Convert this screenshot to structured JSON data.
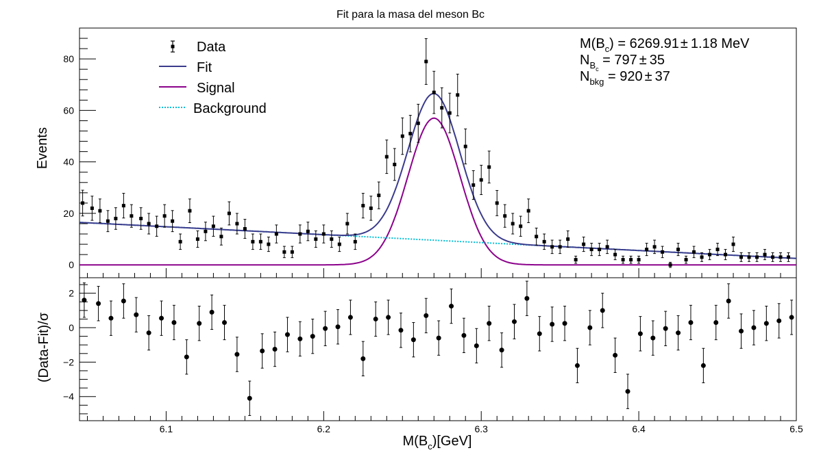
{
  "chart_data": [
    {
      "type": "scatter",
      "panel": "fit",
      "title": "Fit para la masa del meson Bc",
      "ylabel": "Events",
      "xlim": [
        6.045,
        6.5
      ],
      "ylim": [
        -5,
        92
      ],
      "y_ticks": [
        0,
        20,
        40,
        60,
        80
      ],
      "y_tick_labels": [
        "0",
        "20",
        "40",
        "60",
        "80"
      ],
      "legend": {
        "placement": "top-left",
        "entries": [
          {
            "label": "Data",
            "kind": "points"
          },
          {
            "label": "Fit",
            "kind": "line",
            "color": "#3a3a8c"
          },
          {
            "label": "Signal",
            "kind": "line",
            "color": "#8b008b"
          },
          {
            "label": "Background",
            "kind": "dotted",
            "color": "#00bcd4"
          }
        ]
      },
      "stats": {
        "mass": {
          "prefix": "M(B",
          "sub": "c",
          "value": ") = 6269.91",
          "pm": "±",
          "err": "1.18 MeV"
        },
        "n_bc": {
          "prefix": "N",
          "sub": "B",
          "subsub": "c",
          "value": " = 797",
          "pm": "±",
          "err": "35"
        },
        "n_bkg": {
          "prefix": "N",
          "sub": "bkg",
          "value": " = 920",
          "pm": "±",
          "err": "37"
        }
      },
      "model": {
        "signal_mean": 6.27,
        "signal_sigma": 0.0165,
        "signal_peak": 57,
        "background_at_xmin": 16.5,
        "background_at_xmax": 2.5
      },
      "series": [
        {
          "name": "Data",
          "x": [
            6.047,
            6.053,
            6.058,
            6.063,
            6.068,
            6.073,
            6.078,
            6.084,
            6.089,
            6.094,
            6.099,
            6.104,
            6.109,
            6.115,
            6.12,
            6.125,
            6.13,
            6.135,
            6.14,
            6.145,
            6.15,
            6.155,
            6.16,
            6.165,
            6.17,
            6.175,
            6.18,
            6.185,
            6.19,
            6.195,
            6.2,
            6.205,
            6.21,
            6.215,
            6.22,
            6.225,
            6.23,
            6.235,
            6.24,
            6.245,
            6.25,
            6.255,
            6.26,
            6.265,
            6.27,
            6.275,
            6.28,
            6.285,
            6.29,
            6.295,
            6.3,
            6.305,
            6.31,
            6.315,
            6.32,
            6.325,
            6.33,
            6.335,
            6.34,
            6.345,
            6.35,
            6.355,
            6.36,
            6.365,
            6.37,
            6.375,
            6.38,
            6.385,
            6.39,
            6.395,
            6.4,
            6.405,
            6.41,
            6.415,
            6.42,
            6.425,
            6.43,
            6.435,
            6.44,
            6.445,
            6.45,
            6.455,
            6.46,
            6.465,
            6.47,
            6.475,
            6.48,
            6.485,
            6.49,
            6.495
          ],
          "y": [
            24,
            22,
            21,
            17,
            18,
            23,
            19,
            18,
            16,
            15,
            19,
            17,
            9,
            21,
            10,
            13,
            15,
            11,
            20,
            16,
            14,
            9,
            9,
            8,
            12,
            5,
            5,
            12,
            13,
            10,
            12,
            10,
            8,
            16,
            9,
            23,
            22,
            27,
            42,
            39,
            50,
            51,
            55,
            79,
            67,
            61,
            59,
            66,
            46,
            31,
            33,
            38,
            24,
            19,
            16,
            15,
            21,
            11,
            9,
            7,
            7,
            10,
            2,
            8,
            6,
            6,
            7,
            4,
            2,
            2,
            2,
            6,
            7,
            5,
            0,
            6,
            2,
            5,
            3,
            4,
            6,
            4,
            8,
            3,
            3,
            3,
            4,
            3,
            3,
            3
          ],
          "yerr": [
            5,
            4.7,
            4.6,
            4.1,
            4.2,
            4.8,
            4.4,
            4.2,
            4,
            3.9,
            4.4,
            4.1,
            3,
            4.6,
            3.2,
            3.6,
            3.9,
            3.3,
            4.5,
            4,
            3.7,
            3,
            3,
            2.8,
            3.5,
            2.2,
            2.2,
            3.5,
            3.6,
            3.2,
            3.5,
            3.2,
            2.8,
            4,
            3,
            4.8,
            4.7,
            5.2,
            6.5,
            6.2,
            7.1,
            7.1,
            7.4,
            8.9,
            8.2,
            7.8,
            7.7,
            8.1,
            6.8,
            5.6,
            5.7,
            6.2,
            4.9,
            4.4,
            4,
            3.9,
            4.6,
            3.3,
            3,
            2.6,
            2.6,
            3.2,
            1.4,
            2.8,
            2.4,
            2.4,
            2.6,
            2,
            1.4,
            1.4,
            1.4,
            2.4,
            2.6,
            2.2,
            1,
            2.4,
            1.4,
            2.2,
            1.7,
            2,
            2.4,
            2,
            2.8,
            1.7,
            1.7,
            1.7,
            2,
            1.7,
            1.7,
            1.7
          ]
        }
      ]
    },
    {
      "type": "scatter",
      "panel": "pull",
      "xlabel_prefix": "M(B",
      "xlabel_sub": "c",
      "xlabel_suffix": ")[GeV]",
      "ylabel": "(Data-Fit)/σ",
      "xlim": [
        6.045,
        6.5
      ],
      "ylim": [
        -5.4,
        2.9
      ],
      "x_ticks": [
        6.1,
        6.2,
        6.3,
        6.4,
        6.5
      ],
      "x_tick_labels": [
        "6.1",
        "6.2",
        "6.3",
        "6.4",
        "6.5"
      ],
      "y_ticks": [
        -4,
        -2,
        0,
        2
      ],
      "y_tick_labels": [
        "−4",
        "−2",
        "0",
        "2"
      ],
      "series": [
        {
          "name": "",
          "x": [
            6.048,
            6.057,
            6.065,
            6.073,
            6.081,
            6.089,
            6.097,
            6.105,
            6.113,
            6.121,
            6.129,
            6.137,
            6.145,
            6.153,
            6.161,
            6.169,
            6.177,
            6.185,
            6.193,
            6.201,
            6.209,
            6.217,
            6.225,
            6.233,
            6.241,
            6.249,
            6.257,
            6.265,
            6.273,
            6.281,
            6.289,
            6.297,
            6.305,
            6.313,
            6.321,
            6.329,
            6.337,
            6.345,
            6.353,
            6.361,
            6.369,
            6.377,
            6.385,
            6.393,
            6.401,
            6.409,
            6.417,
            6.425,
            6.433,
            6.441,
            6.449,
            6.457,
            6.465,
            6.473,
            6.481,
            6.489,
            6.497
          ],
          "y": [
            1.6,
            1.4,
            0.55,
            1.55,
            0.75,
            -0.3,
            0.55,
            0.3,
            -1.7,
            0.25,
            0.9,
            0.3,
            -1.55,
            -4.1,
            -1.35,
            -1.25,
            -0.4,
            -0.65,
            -0.5,
            -0.05,
            0.05,
            0.6,
            -1.8,
            0.5,
            0.6,
            -0.15,
            -0.7,
            0.7,
            -0.6,
            1.25,
            -0.45,
            -1.05,
            0.25,
            -1.3,
            0.35,
            1.7,
            -0.35,
            0.2,
            0.25,
            -2.2,
            0.0,
            1.0,
            -1.6,
            -3.7,
            -0.35,
            -0.6,
            -0.05,
            -0.3,
            0.3,
            -2.2,
            0.3,
            1.55,
            -0.2,
            0.0,
            0.25,
            0.4,
            0.6
          ],
          "yerr": [
            1,
            1,
            1,
            1,
            1,
            1,
            1,
            1,
            1,
            1,
            1,
            1,
            1,
            1,
            1,
            1,
            1,
            1,
            1,
            1,
            1,
            1,
            1,
            1,
            1,
            1,
            1,
            1,
            1,
            1,
            1,
            1,
            1,
            1,
            1,
            1,
            1,
            1,
            1,
            1,
            1,
            1,
            1,
            1,
            1,
            1,
            1,
            1,
            1,
            1,
            1,
            1,
            1,
            1,
            1,
            1,
            1
          ]
        }
      ]
    }
  ]
}
